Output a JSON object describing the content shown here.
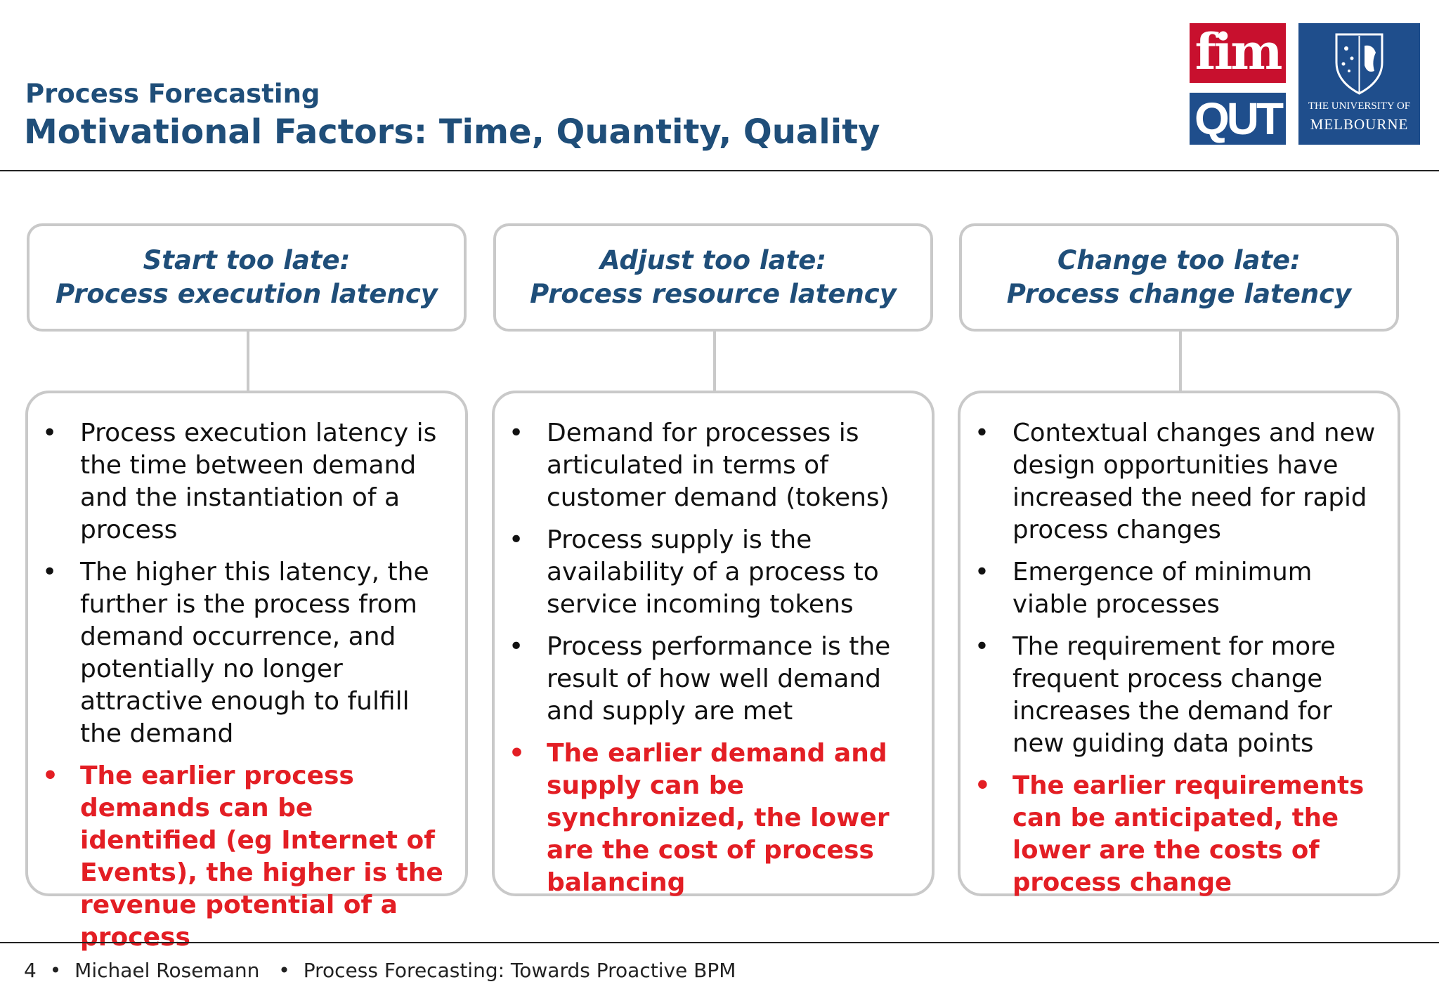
{
  "header": {
    "subtitle": "Process Forecasting",
    "title": "Motivational Factors: Time, Quantity, Quality"
  },
  "logos": {
    "fim": "fim",
    "qut": "QUT",
    "melbourne_line1": "THE UNIVERSITY OF",
    "melbourne_line2": "MELBOURNE"
  },
  "columns": [
    {
      "heading_line1": "Start too late:",
      "heading_line2": "Process execution latency",
      "bullets": [
        "Process execution latency is the time between demand and the instantiation of a process",
        "The higher this latency, the further is the process from demand occurrence, and potentially no longer attractive enough to fulfill the demand"
      ],
      "highlight": "The earlier process demands can be identified (eg Internet of Events), the higher is the revenue potential of a process"
    },
    {
      "heading_line1": "Adjust too late:",
      "heading_line2": "Process resource latency",
      "bullets": [
        "Demand for processes is articulated in terms of customer demand (tokens)",
        "Process supply is the availability of a process to service incoming tokens",
        "Process performance is the result of how well demand and supply are met"
      ],
      "highlight": "The earlier demand and supply can be synchronized, the lower are the cost of process balancing"
    },
    {
      "heading_line1": "Change too late:",
      "heading_line2": "Process change latency",
      "bullets": [
        "Contextual changes and new design opportunities have increased the need for rapid process changes",
        "Emergence of minimum viable processes",
        "The requirement for more frequent process change increases the demand for new guiding data points"
      ],
      "highlight": "The earlier requirements can be anticipated, the lower are the costs of process change"
    }
  ],
  "footer": {
    "page_number": "4",
    "separator": "•",
    "author": "Michael Rosemann",
    "talk_title": "Process Forecasting: Towards Proactive BPM"
  }
}
